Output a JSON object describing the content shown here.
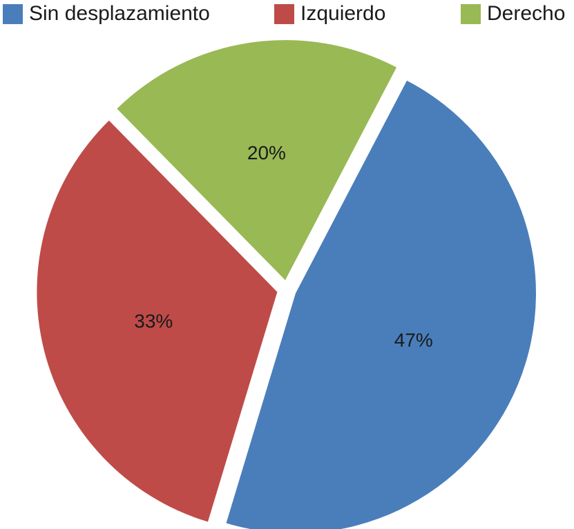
{
  "chart_data": {
    "type": "pie",
    "categories": [
      "Sin desplazamiento",
      "Izquierdo",
      "Derecho"
    ],
    "values": [
      47,
      33,
      20
    ],
    "labels": [
      "47%",
      "33%",
      "20%"
    ],
    "colors": [
      "#4a7ebb",
      "#be4b48",
      "#98b954"
    ],
    "legend_position": "top",
    "exploded": true
  },
  "legend": {
    "items": [
      {
        "label": "Sin desplazamiento",
        "color": "#4a7ebb"
      },
      {
        "label": "Izquierdo",
        "color": "#be4b48"
      },
      {
        "label": "Derecho",
        "color": "#98b954"
      }
    ]
  }
}
